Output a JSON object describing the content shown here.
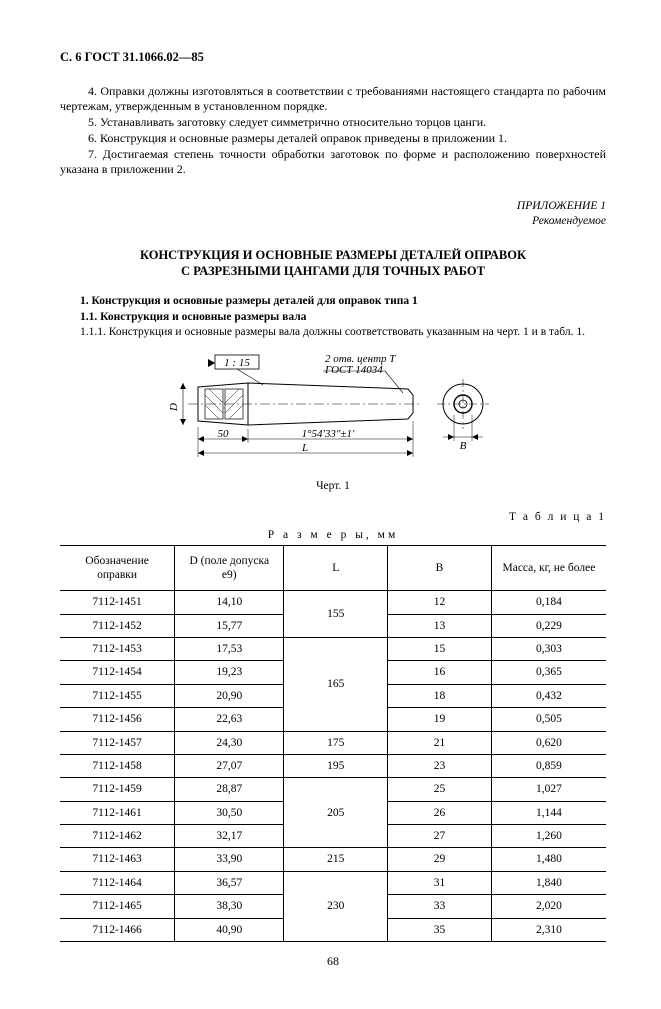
{
  "header": "С. 6 ГОСТ 31.1066.02—85",
  "paragraphs": [
    "4. Оправки должны изготовляться в соответствии с требованиями настоящего стандарта по рабочим чертежам, утвержденным в установленном порядке.",
    "5. Устанавливать заготовку следует симметрично относительно торцов цанги.",
    "6. Конструкция и основные размеры деталей оправок приведены в приложении 1.",
    "7. Достигаемая степень точности обработки заготовок по форме и расположению поверхностей указана в приложении 2."
  ],
  "appendix": {
    "title": "ПРИЛОЖЕНИЕ 1",
    "note": "Рекомендуемое"
  },
  "section_title_1": "КОНСТРУКЦИЯ И ОСНОВНЫЕ РАЗМЕРЫ ДЕТАЛЕЙ ОПРАВОК",
  "section_title_2": "С РАЗРЕЗНЫМИ ЦАНГАМИ ДЛЯ ТОЧНЫХ РАБОТ",
  "sub1": "1. Конструкция и основные размеры деталей для оправок типа 1",
  "sub2": "1.1. Конструкция и основные размеры вала",
  "sub3": "1.1.1. Конструкция и основные размеры вала должны соответствовать указанным на черт. 1 и в табл. 1.",
  "drawing": {
    "taper": "1 : 15",
    "note1": "2 отв. центр Т",
    "note2": "ГОСТ 14034",
    "dim50": "50",
    "angle": "1°54'33\"±1'",
    "L": "L",
    "D": "D",
    "B": "B",
    "caption": "Черт. 1"
  },
  "table_label": "Т а б л и ц а  1",
  "table_units": "Р а з м е р ы,  мм",
  "table": {
    "columns": [
      "Обозначение оправки",
      "D (поле допуска e9)",
      "L",
      "B",
      "Масса, кг, не более"
    ],
    "col_widths": [
      "21%",
      "20%",
      "19%",
      "19%",
      "21%"
    ],
    "rows": [
      {
        "des": "7112-1451",
        "d": "14,10",
        "l": "155",
        "l_span": 2,
        "b": "12",
        "m": "0,184"
      },
      {
        "des": "7112-1452",
        "d": "15,77",
        "b": "13",
        "m": "0,229"
      },
      {
        "des": "7112-1453",
        "d": "17,53",
        "l": "165",
        "l_span": 4,
        "b": "15",
        "m": "0,303"
      },
      {
        "des": "7112-1454",
        "d": "19,23",
        "b": "16",
        "m": "0,365"
      },
      {
        "des": "7112-1455",
        "d": "20,90",
        "b": "18",
        "m": "0,432"
      },
      {
        "des": "7112-1456",
        "d": "22,63",
        "b": "19",
        "m": "0,505"
      },
      {
        "des": "7112-1457",
        "d": "24,30",
        "l": "175",
        "l_span": 1,
        "b": "21",
        "m": "0,620"
      },
      {
        "des": "7112-1458",
        "d": "27,07",
        "l": "195",
        "l_span": 1,
        "b": "23",
        "m": "0,859"
      },
      {
        "des": "7112-1459",
        "d": "28,87",
        "l": "205",
        "l_span": 3,
        "b": "25",
        "m": "1,027"
      },
      {
        "des": "7112-1461",
        "d": "30,50",
        "b": "26",
        "m": "1,144"
      },
      {
        "des": "7112-1462",
        "d": "32,17",
        "b": "27",
        "m": "1,260"
      },
      {
        "des": "7112-1463",
        "d": "33,90",
        "l": "215",
        "l_span": 1,
        "b": "29",
        "m": "1,480"
      },
      {
        "des": "7112-1464",
        "d": "36,57",
        "l": "230",
        "l_span": 3,
        "b": "31",
        "m": "1,840"
      },
      {
        "des": "7112-1465",
        "d": "38,30",
        "b": "33",
        "m": "2,020"
      },
      {
        "des": "7112-1466",
        "d": "40,90",
        "b": "35",
        "m": "2,310"
      }
    ]
  },
  "page_number": "68",
  "colors": {
    "ink": "#000000",
    "paper": "#ffffff"
  }
}
